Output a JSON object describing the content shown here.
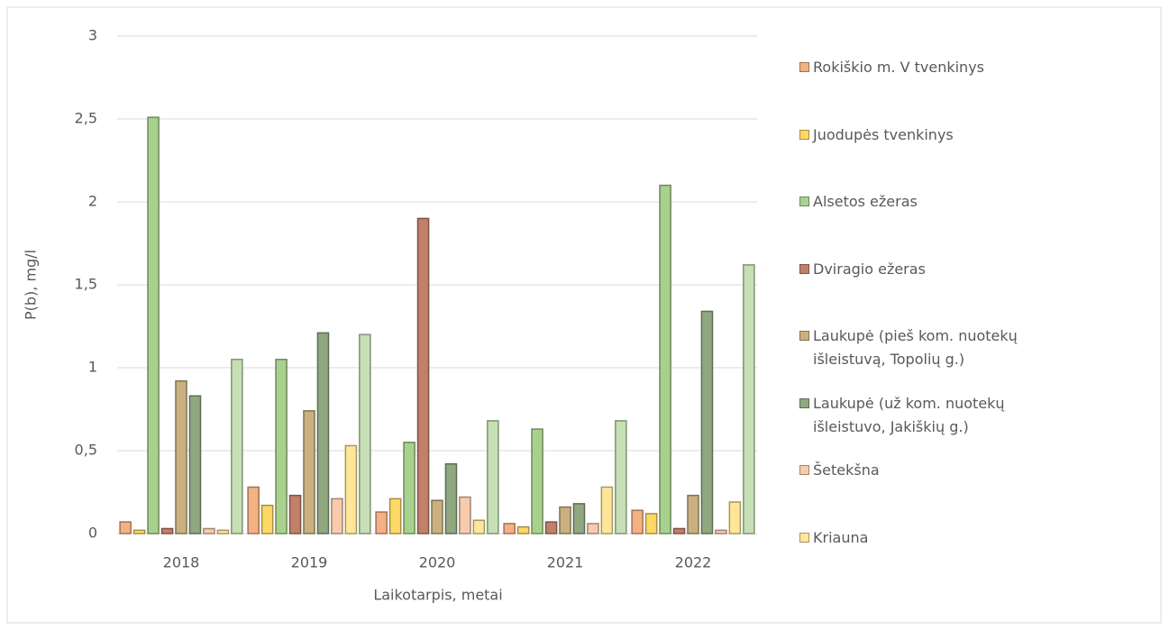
{
  "chart_data": {
    "type": "bar",
    "categories": [
      "2018",
      "2019",
      "2020",
      "2021",
      "2022"
    ],
    "x_label": "Laikotarpis, metai",
    "y_label": "P(b), mg/l",
    "ylim": [
      0,
      3
    ],
    "yticks": [
      0,
      {
        "value": 0.5,
        "label": "0,5"
      },
      1,
      {
        "value": 1.5,
        "label": "1,5"
      },
      2,
      {
        "value": 2.5,
        "label": "2,5"
      },
      3
    ],
    "grid": true,
    "legend": "right",
    "series": [
      {
        "name": "Rokiškio m. V tvenkinys",
        "color": "#f4b183",
        "values": [
          0.07,
          0.28,
          0.13,
          0.06,
          0.14
        ]
      },
      {
        "name": "Juodupės tvenkinys",
        "color": "#ffd966",
        "values": [
          0.02,
          0.17,
          0.21,
          0.04,
          0.12
        ]
      },
      {
        "name": "Alsetos ežeras",
        "color": "#a9d18e",
        "values": [
          2.51,
          1.05,
          0.55,
          0.63,
          2.1
        ]
      },
      {
        "name": "Dviragio ežeras",
        "color": "#c0806a",
        "values": [
          0.03,
          0.23,
          1.9,
          0.07,
          0.03
        ]
      },
      {
        "name": "Laukupė (pieš kom. nuotekų išleistuvą, Topolių g.)",
        "color": "#c9b080",
        "values": [
          0.92,
          0.74,
          0.2,
          0.16,
          0.23
        ]
      },
      {
        "name": "Laukupė (už kom. nuotekų išleistuvo, Jakiškių g.)",
        "color": "#90a880",
        "values": [
          0.83,
          1.21,
          0.42,
          0.18,
          1.34
        ]
      },
      {
        "name": "Šetekšna",
        "color": "#f8cbad",
        "values": [
          0.03,
          0.21,
          0.22,
          0.06,
          0.02
        ]
      },
      {
        "name": "Kriauna",
        "color": "#ffe699",
        "values": [
          0.02,
          0.53,
          0.08,
          0.28,
          0.19
        ]
      },
      {
        "color": "#c5e0b4",
        "values": [
          1.05,
          1.2,
          0.68,
          0.68,
          1.62
        ]
      }
    ]
  }
}
